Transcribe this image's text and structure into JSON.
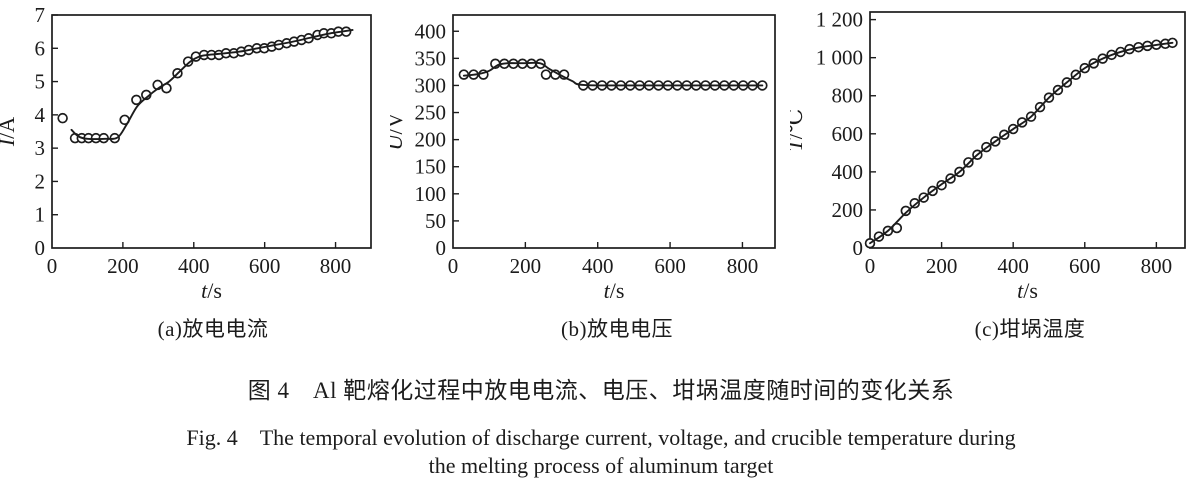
{
  "figure": {
    "caption_zh": "图 4　Al 靶熔化过程中放电电流、电压、坩埚温度随时间的变化关系",
    "caption_en_line1": "Fig. 4　The temporal evolution of discharge current, voltage, and crucible temperature during",
    "caption_en_line2": "the melting process of aluminum target"
  },
  "colors": {
    "ink": "#1c1c1c",
    "background": "#ffffff"
  },
  "chart_data": [
    {
      "type": "scatter",
      "panel": "a",
      "subcaption": "(a)放电电流",
      "xlabel": "t/s",
      "ylabel": "I/A",
      "xlim": [
        0,
        900
      ],
      "ylim": [
        0,
        7
      ],
      "xticks": [
        0,
        200,
        400,
        600,
        800
      ],
      "xtick_labels": [
        "0",
        "200",
        "400",
        "600",
        "800"
      ],
      "yticks": [
        0,
        1,
        2,
        3,
        4,
        5,
        6,
        7
      ],
      "ytick_labels": [
        "0",
        "1",
        "2",
        "3",
        "4",
        "5",
        "6",
        "7"
      ],
      "grid": false,
      "legend": "none",
      "points": [
        [
          30,
          3.9
        ],
        [
          65,
          3.3
        ],
        [
          84,
          3.3
        ],
        [
          103,
          3.3
        ],
        [
          124,
          3.3
        ],
        [
          146,
          3.3
        ],
        [
          177,
          3.3
        ],
        [
          205,
          3.85
        ],
        [
          238,
          4.45
        ],
        [
          266,
          4.6
        ],
        [
          298,
          4.9
        ],
        [
          323,
          4.8
        ],
        [
          354,
          5.25
        ],
        [
          384,
          5.6
        ],
        [
          406,
          5.75
        ],
        [
          429,
          5.8
        ],
        [
          450,
          5.8
        ],
        [
          471,
          5.8
        ],
        [
          491,
          5.85
        ],
        [
          513,
          5.85
        ],
        [
          534,
          5.9
        ],
        [
          555,
          5.95
        ],
        [
          578,
          6.0
        ],
        [
          599,
          6.0
        ],
        [
          620,
          6.05
        ],
        [
          640,
          6.1
        ],
        [
          662,
          6.15
        ],
        [
          683,
          6.2
        ],
        [
          704,
          6.25
        ],
        [
          724,
          6.3
        ],
        [
          749,
          6.4
        ],
        [
          767,
          6.45
        ],
        [
          788,
          6.45
        ],
        [
          808,
          6.5
        ],
        [
          830,
          6.5
        ]
      ],
      "trend": [
        [
          55,
          3.55
        ],
        [
          75,
          3.35
        ],
        [
          100,
          3.28
        ],
        [
          150,
          3.28
        ],
        [
          185,
          3.32
        ],
        [
          210,
          3.7
        ],
        [
          240,
          4.25
        ],
        [
          270,
          4.55
        ],
        [
          300,
          4.8
        ],
        [
          330,
          5.0
        ],
        [
          360,
          5.3
        ],
        [
          390,
          5.6
        ],
        [
          415,
          5.75
        ],
        [
          440,
          5.8
        ],
        [
          480,
          5.84
        ],
        [
          530,
          5.9
        ],
        [
          580,
          6.0
        ],
        [
          630,
          6.1
        ],
        [
          680,
          6.2
        ],
        [
          730,
          6.32
        ],
        [
          780,
          6.44
        ],
        [
          848,
          6.55
        ]
      ]
    },
    {
      "type": "scatter",
      "panel": "b",
      "subcaption": "(b)放电电压",
      "xlabel": "t/s",
      "ylabel": "U/V",
      "xlim": [
        0,
        890
      ],
      "ylim": [
        0,
        430
      ],
      "xticks": [
        0,
        200,
        400,
        600,
        800
      ],
      "xtick_labels": [
        "0",
        "200",
        "400",
        "600",
        "800"
      ],
      "yticks": [
        0,
        50,
        100,
        150,
        200,
        250,
        300,
        350,
        400
      ],
      "ytick_labels": [
        "0",
        "50",
        "100",
        "150",
        "200",
        "250",
        "300",
        "350",
        "400"
      ],
      "grid": false,
      "legend": "none",
      "points": [
        [
          30,
          320
        ],
        [
          57,
          320
        ],
        [
          84,
          320
        ],
        [
          117,
          340
        ],
        [
          142,
          340
        ],
        [
          167,
          340
        ],
        [
          192,
          340
        ],
        [
          217,
          340
        ],
        [
          242,
          340
        ],
        [
          257,
          320
        ],
        [
          283,
          320
        ],
        [
          307,
          320
        ],
        [
          360,
          300
        ],
        [
          386,
          300
        ],
        [
          412,
          300
        ],
        [
          438,
          300
        ],
        [
          464,
          300
        ],
        [
          490,
          300
        ],
        [
          516,
          300
        ],
        [
          542,
          300
        ],
        [
          568,
          300
        ],
        [
          594,
          300
        ],
        [
          620,
          300
        ],
        [
          646,
          300
        ],
        [
          672,
          300
        ],
        [
          698,
          300
        ],
        [
          724,
          300
        ],
        [
          750,
          300
        ],
        [
          776,
          300
        ],
        [
          802,
          300
        ],
        [
          828,
          300
        ],
        [
          855,
          300
        ]
      ],
      "trend": [
        [
          30,
          318
        ],
        [
          70,
          321
        ],
        [
          100,
          327
        ],
        [
          125,
          338
        ],
        [
          150,
          341
        ],
        [
          190,
          341
        ],
        [
          240,
          341
        ],
        [
          265,
          331
        ],
        [
          300,
          318
        ],
        [
          330,
          308
        ],
        [
          360,
          301
        ],
        [
          500,
          300
        ],
        [
          700,
          300
        ],
        [
          855,
          300
        ]
      ]
    },
    {
      "type": "scatter",
      "panel": "c",
      "subcaption": "(c)坩埚温度",
      "xlabel": "t/s",
      "ylabel": "T/℃",
      "xlim": [
        0,
        880
      ],
      "ylim": [
        0,
        1240
      ],
      "xticks": [
        0,
        200,
        400,
        600,
        800
      ],
      "xtick_labels": [
        "0",
        "200",
        "400",
        "600",
        "800"
      ],
      "yticks": [
        0,
        200,
        400,
        600,
        800,
        1000,
        1200
      ],
      "ytick_labels": [
        "0",
        "200",
        "400",
        "600",
        "800",
        "1 000",
        "1 200"
      ],
      "grid": false,
      "legend": "none",
      "points": [
        [
          0,
          25
        ],
        [
          25,
          60
        ],
        [
          50,
          90
        ],
        [
          75,
          105
        ],
        [
          100,
          195
        ],
        [
          125,
          235
        ],
        [
          150,
          265
        ],
        [
          175,
          300
        ],
        [
          200,
          330
        ],
        [
          225,
          365
        ],
        [
          250,
          400
        ],
        [
          275,
          450
        ],
        [
          300,
          490
        ],
        [
          325,
          530
        ],
        [
          350,
          560
        ],
        [
          375,
          595
        ],
        [
          400,
          625
        ],
        [
          425,
          660
        ],
        [
          450,
          690
        ],
        [
          475,
          740
        ],
        [
          500,
          790
        ],
        [
          525,
          830
        ],
        [
          550,
          870
        ],
        [
          575,
          910
        ],
        [
          600,
          945
        ],
        [
          625,
          970
        ],
        [
          650,
          995
        ],
        [
          675,
          1015
        ],
        [
          700,
          1030
        ],
        [
          725,
          1045
        ],
        [
          750,
          1055
        ],
        [
          775,
          1062
        ],
        [
          800,
          1068
        ],
        [
          825,
          1073
        ],
        [
          845,
          1078
        ]
      ],
      "trend": [
        [
          0,
          25
        ],
        [
          50,
          90
        ],
        [
          100,
          185
        ],
        [
          150,
          265
        ],
        [
          200,
          335
        ],
        [
          250,
          400
        ],
        [
          300,
          490
        ],
        [
          350,
          560
        ],
        [
          400,
          625
        ],
        [
          450,
          690
        ],
        [
          500,
          790
        ],
        [
          550,
          870
        ],
        [
          600,
          945
        ],
        [
          650,
          995
        ],
        [
          700,
          1030
        ],
        [
          750,
          1053
        ],
        [
          800,
          1067
        ],
        [
          845,
          1078
        ]
      ]
    }
  ]
}
